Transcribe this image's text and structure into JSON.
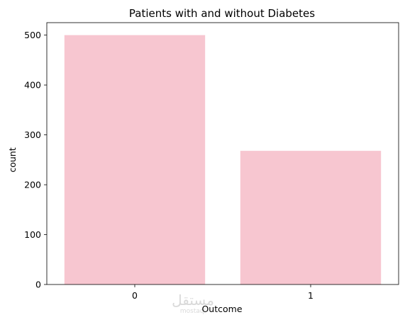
{
  "chart_data": {
    "type": "bar",
    "title": "Patients with and without Diabetes",
    "xlabel": "Outcome",
    "ylabel": "count",
    "categories": [
      "0",
      "1"
    ],
    "values": [
      500,
      268
    ],
    "ylim": [
      0,
      525
    ],
    "yticks": [
      0,
      100,
      200,
      300,
      400,
      500
    ],
    "grid": false,
    "legend": "none",
    "bar_color": "#f7c6d0"
  },
  "watermark": {
    "text": "مستقل",
    "subtext": "mostaql"
  }
}
